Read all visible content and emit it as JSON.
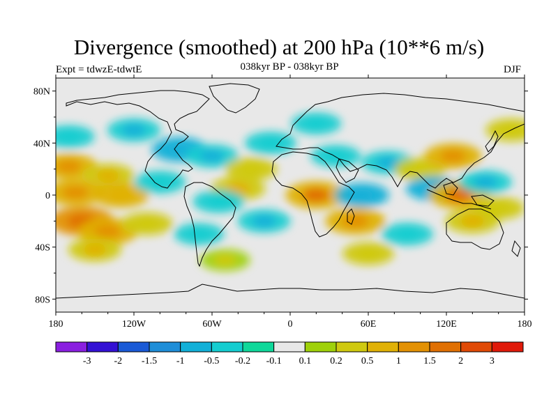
{
  "header": {
    "title": "Divergence (smoothed) at 200 hPa (10**6 m/s)",
    "expt_label": "Expt = tdwzE-tdwtE",
    "subtitle": "038kyr BP - 038kyr BP",
    "season": "DJF"
  },
  "chart_data": {
    "type": "heatmap",
    "title": "Divergence (smoothed) at 200 hPa (10**6 m/s)",
    "subtitle": "038kyr BP - 038kyr BP",
    "xlabel": "",
    "ylabel": "",
    "projection": "cylindrical equidistant",
    "xlim": [
      -180,
      180
    ],
    "ylim": [
      -90,
      90
    ],
    "x_ticks": [
      {
        "value": -180,
        "label": "180"
      },
      {
        "value": -120,
        "label": "120W"
      },
      {
        "value": -60,
        "label": "60W"
      },
      {
        "value": 0,
        "label": "0"
      },
      {
        "value": 60,
        "label": "60E"
      },
      {
        "value": 120,
        "label": "120E"
      },
      {
        "value": 180,
        "label": "180"
      }
    ],
    "y_ticks": [
      {
        "value": 80,
        "label": "80N"
      },
      {
        "value": 40,
        "label": "40N"
      },
      {
        "value": 0,
        "label": "0"
      },
      {
        "value": -40,
        "label": "40S"
      },
      {
        "value": -80,
        "label": "80S"
      }
    ],
    "colorbar": {
      "levels": [
        -3,
        -2,
        -1.5,
        -1,
        -0.5,
        -0.2,
        -0.1,
        0.1,
        0.2,
        0.5,
        1,
        1.5,
        2,
        3
      ],
      "labels": [
        "-3",
        "-2",
        "-1.5",
        "-1",
        "-0.5",
        "-0.2",
        "-0.1",
        "0.1",
        "0.2",
        "0.5",
        "1",
        "1.5",
        "2",
        "3"
      ],
      "colors": [
        "#8a1fe0",
        "#3311d4",
        "#1a5ad6",
        "#1f8ed8",
        "#12b0d8",
        "#14cdd0",
        "#0fd89a",
        "#e8e8e8",
        "#9fd10a",
        "#cfc910",
        "#e0b106",
        "#e39104",
        "#e07003",
        "#e04a06",
        "#e01a0a"
      ]
    },
    "background_value_color": "#e8e8e8",
    "land_outline": true,
    "fields": [
      {
        "lon": -170,
        "lat": 22,
        "value": 0.7
      },
      {
        "lon": -140,
        "lat": 15,
        "value": 0.4
      },
      {
        "lon": -165,
        "lat": 2,
        "value": 0.8
      },
      {
        "lon": -130,
        "lat": 0,
        "value": 0.6
      },
      {
        "lon": -160,
        "lat": -20,
        "value": 1.2
      },
      {
        "lon": -140,
        "lat": -28,
        "value": 0.9
      },
      {
        "lon": -150,
        "lat": -42,
        "value": 0.4
      },
      {
        "lon": -110,
        "lat": -22,
        "value": 0.3
      },
      {
        "lon": -100,
        "lat": 10,
        "value": -0.3
      },
      {
        "lon": -85,
        "lat": 35,
        "value": -0.6
      },
      {
        "lon": -120,
        "lat": 50,
        "value": -0.4
      },
      {
        "lon": -170,
        "lat": 45,
        "value": -0.3
      },
      {
        "lon": -60,
        "lat": 30,
        "value": -0.4
      },
      {
        "lon": -40,
        "lat": 5,
        "value": 0.5
      },
      {
        "lon": -55,
        "lat": -5,
        "value": -0.3
      },
      {
        "lon": -70,
        "lat": -30,
        "value": -0.2
      },
      {
        "lon": -20,
        "lat": -20,
        "value": -0.4
      },
      {
        "lon": -30,
        "lat": 20,
        "value": 0.3
      },
      {
        "lon": -15,
        "lat": 40,
        "value": -0.3
      },
      {
        "lon": 20,
        "lat": 0,
        "value": 1.0
      },
      {
        "lon": 50,
        "lat": -20,
        "value": 0.9
      },
      {
        "lon": 55,
        "lat": 0,
        "value": -0.5
      },
      {
        "lon": 35,
        "lat": 30,
        "value": -0.2
      },
      {
        "lon": 75,
        "lat": 25,
        "value": -0.4
      },
      {
        "lon": 100,
        "lat": 20,
        "value": 0.3
      },
      {
        "lon": 110,
        "lat": 5,
        "value": -0.5
      },
      {
        "lon": 130,
        "lat": 0,
        "value": 1.0
      },
      {
        "lon": 125,
        "lat": 30,
        "value": 0.7
      },
      {
        "lon": 150,
        "lat": 10,
        "value": -0.4
      },
      {
        "lon": 140,
        "lat": -20,
        "value": 0.5
      },
      {
        "lon": 160,
        "lat": -10,
        "value": 0.3
      },
      {
        "lon": 90,
        "lat": -30,
        "value": -0.3
      },
      {
        "lon": 60,
        "lat": -45,
        "value": 0.3
      },
      {
        "lon": -50,
        "lat": -50,
        "value": 0.2
      },
      {
        "lon": 170,
        "lat": 50,
        "value": 0.3
      },
      {
        "lon": 20,
        "lat": 55,
        "value": -0.2
      }
    ]
  }
}
